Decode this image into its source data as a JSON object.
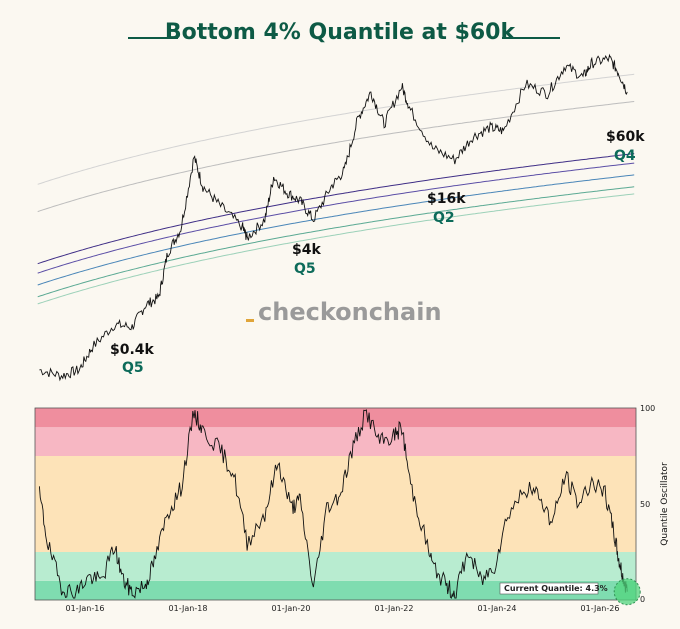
{
  "title": "Bottom 4% Quantile at $60k",
  "watermark": "checkonchain",
  "chart_data": [
    {
      "type": "line",
      "title": "Bottom 4% Quantile at $60k",
      "x_range": [
        "2014-12-01",
        "2026-04-01"
      ],
      "log_scale": true,
      "y_range": [
        150,
        200000
      ],
      "series": [
        {
          "values": [
            [
              "2015-01",
              270
            ],
            [
              "2015-06",
              240
            ],
            [
              "2015-10",
              270
            ],
            [
              "2016-01",
              420
            ],
            [
              "2016-06",
              650
            ],
            [
              "2016-10",
              620
            ],
            [
              "2017-01",
              950
            ],
            [
              "2017-04",
              1100
            ],
            [
              "2017-06",
              2600
            ],
            [
              "2017-09",
              4200
            ],
            [
              "2017-12",
              17000
            ],
            [
              "2018-02",
              9500
            ],
            [
              "2018-06",
              6500
            ],
            [
              "2018-11",
              4300
            ],
            [
              "2018-12",
              3500
            ],
            [
              "2019-04",
              5000
            ],
            [
              "2019-06",
              11500
            ],
            [
              "2019-09",
              8500
            ],
            [
              "2019-12",
              7200
            ],
            [
              "2020-03",
              5000
            ],
            [
              "2020-07",
              9500
            ],
            [
              "2020-10",
              13000
            ],
            [
              "2021-01",
              35000
            ],
            [
              "2021-04",
              60000
            ],
            [
              "2021-07",
              32000
            ],
            [
              "2021-11",
              67000
            ],
            [
              "2022-01",
              42000
            ],
            [
              "2022-06",
              20000
            ],
            [
              "2022-11",
              16000
            ],
            [
              "2023-03",
              25000
            ],
            [
              "2023-07",
              30000
            ],
            [
              "2023-10",
              28000
            ],
            [
              "2024-03",
              70000
            ],
            [
              "2024-08",
              58000
            ],
            [
              "2024-12",
              100000
            ],
            [
              "2025-04",
              80000
            ],
            [
              "2025-06",
              105000
            ],
            [
              "2025-10",
              115000
            ],
            [
              "2025-12",
              88000
            ],
            [
              "2026-02",
              60000
            ]
          ]
        }
      ],
      "bands": [
        {
          "color": "#d3d3d3"
        },
        {
          "color": "#bdbdbd"
        },
        {
          "color": "#3f2e86"
        },
        {
          "color": "#5b4ea6"
        },
        {
          "color": "#4a86b8"
        },
        {
          "color": "#5aa993"
        },
        {
          "color": "#9cd1b9"
        }
      ],
      "annotations": [
        {
          "price": "$0.4k",
          "quantile": "Q5"
        },
        {
          "price": "$4k",
          "quantile": "Q5"
        },
        {
          "price": "$16k",
          "quantile": "Q2"
        },
        {
          "price": "$60k",
          "quantile": "Q4"
        }
      ]
    },
    {
      "type": "line",
      "ylabel": "Quantile Oscillator",
      "ylim": [
        0,
        100
      ],
      "y_ticks": [
        "0",
        "50",
        "100"
      ],
      "x_ticks": [
        "01-Jan-16",
        "01-Jan-18",
        "01-Jan-20",
        "01-Jan-22",
        "01-Jan-24",
        "01-Jan-26"
      ],
      "zones": [
        {
          "from": 0,
          "to": 10,
          "color": "#7fdcb0"
        },
        {
          "from": 10,
          "to": 25,
          "color": "#b8ecd0"
        },
        {
          "from": 25,
          "to": 75,
          "color": "#fde3b8"
        },
        {
          "from": 75,
          "to": 90,
          "color": "#f7b7c3"
        },
        {
          "from": 90,
          "to": 100,
          "color": "#ef8e9e"
        }
      ],
      "current_label": "Current Quantile: 4.3%",
      "current_value": 4.3,
      "series": [
        {
          "values": [
            [
              "2015-01",
              55
            ],
            [
              "2015-03",
              28
            ],
            [
              "2015-06",
              7
            ],
            [
              "2015-09",
              3
            ],
            [
              "2015-12",
              12
            ],
            [
              "2016-03",
              10
            ],
            [
              "2016-06",
              28
            ],
            [
              "2016-08",
              10
            ],
            [
              "2016-10",
              4
            ],
            [
              "2017-01",
              8
            ],
            [
              "2017-03",
              20
            ],
            [
              "2017-06",
              45
            ],
            [
              "2017-09",
              58
            ],
            [
              "2017-12",
              98
            ],
            [
              "2018-02",
              88
            ],
            [
              "2018-06",
              78
            ],
            [
              "2018-09",
              65
            ],
            [
              "2018-12",
              30
            ],
            [
              "2019-04",
              45
            ],
            [
              "2019-07",
              72
            ],
            [
              "2019-10",
              48
            ],
            [
              "2019-12",
              52
            ],
            [
              "2020-03",
              6
            ],
            [
              "2020-06",
              48
            ],
            [
              "2020-09",
              55
            ],
            [
              "2020-12",
              80
            ],
            [
              "2021-03",
              98
            ],
            [
              "2021-06",
              82
            ],
            [
              "2021-09",
              85
            ],
            [
              "2021-11",
              90
            ],
            [
              "2022-01",
              60
            ],
            [
              "2022-04",
              35
            ],
            [
              "2022-06",
              18
            ],
            [
              "2022-09",
              8
            ],
            [
              "2022-11",
              3
            ],
            [
              "2023-02",
              25
            ],
            [
              "2023-05",
              10
            ],
            [
              "2023-08",
              18
            ],
            [
              "2023-11",
              45
            ],
            [
              "2024-03",
              58
            ],
            [
              "2024-06",
              55
            ],
            [
              "2024-09",
              40
            ],
            [
              "2024-12",
              65
            ],
            [
              "2025-03",
              50
            ],
            [
              "2025-06",
              62
            ],
            [
              "2025-09",
              55
            ],
            [
              "2025-11",
              35
            ],
            [
              "2025-12",
              22
            ],
            [
              "2026-01",
              12
            ],
            [
              "2026-02",
              4.3
            ]
          ]
        }
      ]
    }
  ]
}
